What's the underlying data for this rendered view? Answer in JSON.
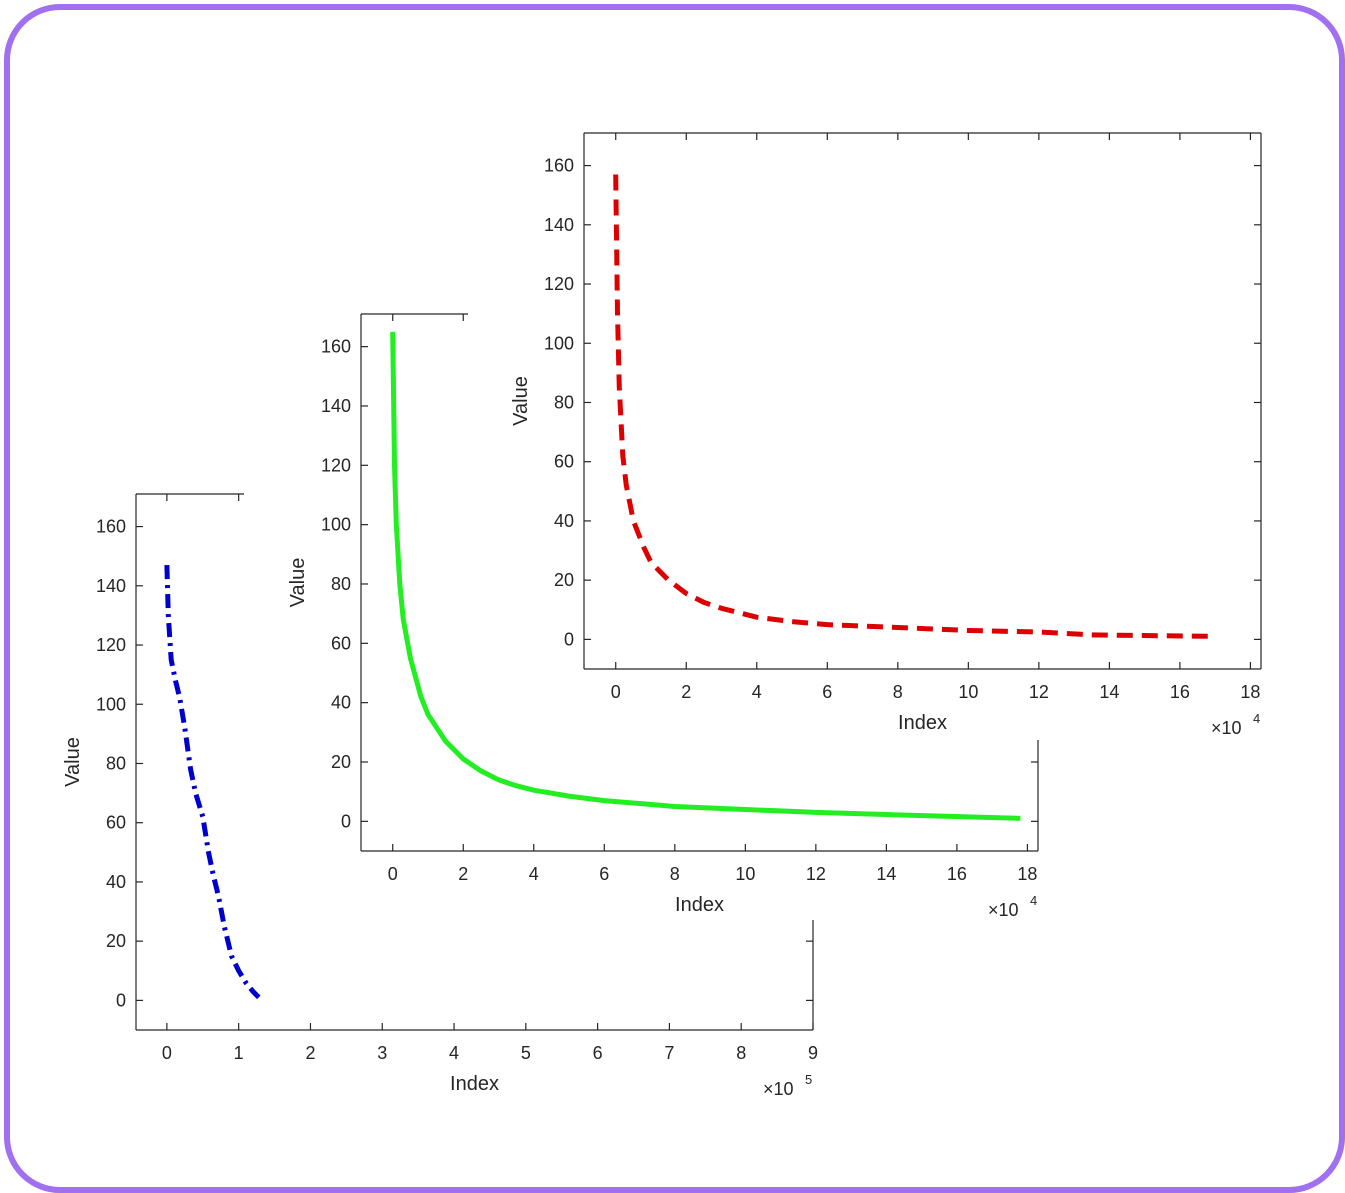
{
  "chart_data": [
    {
      "type": "line",
      "xlabel": "Index",
      "ylabel": "Value",
      "x_multiplier": "×10",
      "x_exponent": "5",
      "xlim": [
        -0.43,
        9
      ],
      "ylim": [
        -10,
        171
      ],
      "xticks": [
        0,
        1,
        2,
        3,
        4,
        5,
        6,
        7,
        8,
        9
      ],
      "yticks": [
        0,
        20,
        40,
        60,
        80,
        100,
        120,
        140,
        160
      ],
      "color": "#0000cc",
      "line_style": "dash-dot",
      "grid": false,
      "series": [
        {
          "x": [
            0,
            0.02,
            0.06,
            0.12,
            0.18,
            0.25,
            0.33,
            0.4,
            0.5,
            0.58,
            0.65,
            0.72,
            0.8,
            0.9,
            1.0,
            1.1,
            1.2,
            1.28
          ],
          "y": [
            147,
            130,
            115,
            108,
            102,
            92,
            78,
            70,
            62,
            50,
            42,
            35,
            25,
            15,
            10,
            6,
            3,
            1
          ]
        }
      ]
    },
    {
      "type": "line",
      "xlabel": "Index",
      "ylabel": "Value",
      "x_multiplier": "×10",
      "x_exponent": "4",
      "xlim": [
        -0.9,
        18.3
      ],
      "ylim": [
        -10,
        171
      ],
      "xticks": [
        0,
        2,
        4,
        6,
        8,
        10,
        12,
        14,
        16,
        18
      ],
      "yticks": [
        0,
        20,
        40,
        60,
        80,
        100,
        120,
        140,
        160
      ],
      "color": "#22ee22",
      "line_style": "solid",
      "grid": false,
      "series": [
        {
          "x": [
            0,
            0.05,
            0.1,
            0.2,
            0.3,
            0.5,
            0.8,
            1.0,
            1.5,
            2.0,
            2.5,
            3.0,
            3.5,
            4.0,
            5.0,
            6.0,
            7.0,
            8.0,
            10.0,
            12.0,
            14.8,
            17.8
          ],
          "y": [
            165,
            120,
            100,
            80,
            68,
            55,
            42,
            36,
            27,
            21,
            17,
            14,
            12,
            10.5,
            8.5,
            7,
            6,
            5,
            4,
            3,
            2,
            1
          ]
        }
      ]
    },
    {
      "type": "line",
      "xlabel": "Index",
      "ylabel": "Value",
      "x_multiplier": "×10",
      "x_exponent": "4",
      "xlim": [
        -0.9,
        18.3
      ],
      "ylim": [
        -10,
        171
      ],
      "xticks": [
        0,
        2,
        4,
        6,
        8,
        10,
        12,
        14,
        16,
        18
      ],
      "yticks": [
        0,
        20,
        40,
        60,
        80,
        100,
        120,
        140,
        160
      ],
      "color": "#dd0000",
      "line_style": "dashed",
      "grid": false,
      "series": [
        {
          "x": [
            0,
            0.05,
            0.1,
            0.2,
            0.3,
            0.5,
            0.8,
            1.0,
            1.5,
            2.0,
            2.5,
            3.0,
            3.5,
            4.0,
            5.0,
            6.0,
            7.0,
            8.0,
            10.0,
            12.0,
            13.5,
            17.0
          ],
          "y": [
            157,
            110,
            85,
            62,
            52,
            40,
            31,
            26,
            20,
            15.5,
            12.5,
            10.5,
            9,
            7.5,
            6,
            5,
            4.5,
            4,
            3,
            2.5,
            1.5,
            1
          ]
        }
      ]
    }
  ]
}
